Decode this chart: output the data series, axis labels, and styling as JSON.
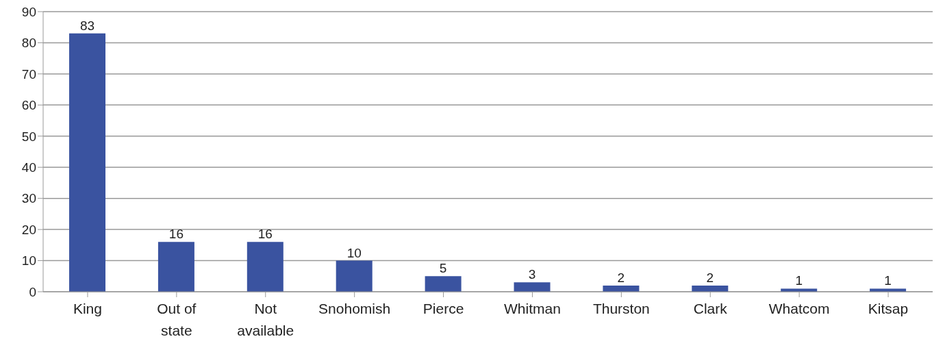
{
  "chart_data": {
    "type": "bar",
    "categories": [
      "King",
      "Out of state",
      "Not available",
      "Snohomish",
      "Pierce",
      "Whitman",
      "Thurston",
      "Clark",
      "Whatcom",
      "Kitsap"
    ],
    "values": [
      83,
      16,
      16,
      10,
      5,
      3,
      2,
      2,
      1,
      1
    ],
    "color": "#3a53a0",
    "ylim": [
      0,
      90
    ],
    "yticks": [
      0,
      10,
      20,
      30,
      40,
      50,
      60,
      70,
      80,
      90
    ],
    "grid": "y",
    "data_labels": true
  }
}
